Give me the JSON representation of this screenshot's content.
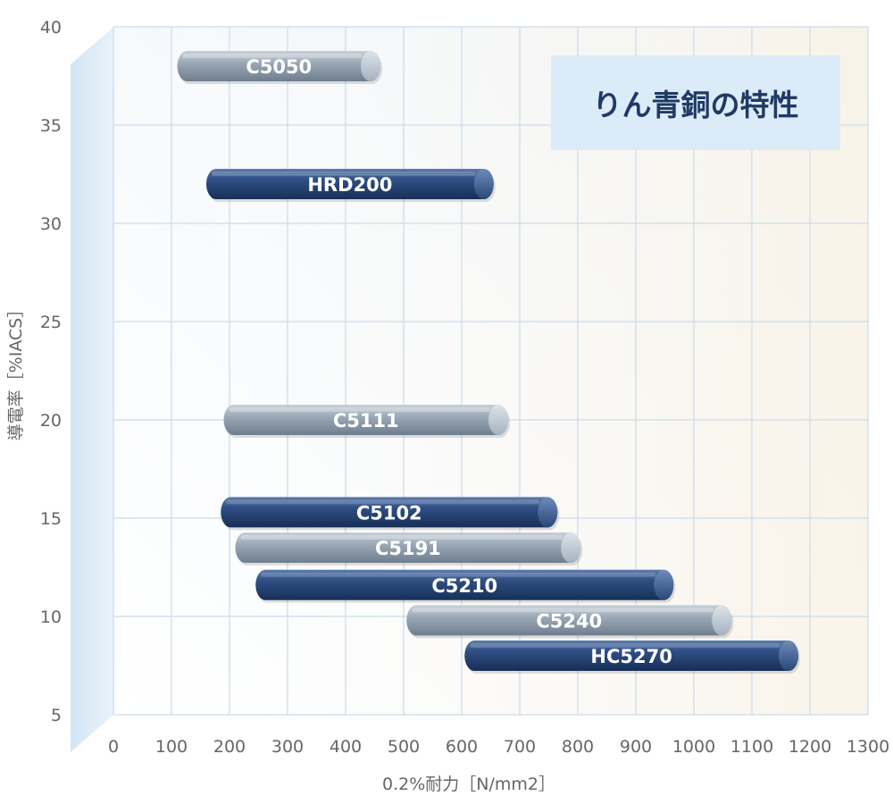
{
  "chart_data": {
    "type": "bar",
    "orientation": "horizontal-range",
    "title": "りん青銅の特性",
    "xlabel": "0.2%耐力［N/mm2］",
    "ylabel": "導電率［%IACS］",
    "xlim": [
      0,
      1300
    ],
    "ylim": [
      5,
      40
    ],
    "xticks": [
      "0",
      "100",
      "200",
      "300",
      "400",
      "500",
      "600",
      "700",
      "800",
      "900",
      "1000",
      "1100",
      "1200",
      "1300"
    ],
    "yticks": [
      "5",
      "10",
      "15",
      "20",
      "25",
      "30",
      "35",
      "40"
    ],
    "grid": true,
    "series": [
      {
        "label": "C5050",
        "x_start": 110,
        "x_end": 460,
        "y": 38,
        "style": "gray"
      },
      {
        "label": "HRD200",
        "x_start": 160,
        "x_end": 655,
        "y": 32,
        "style": "navy"
      },
      {
        "label": "C5111",
        "x_start": 190,
        "x_end": 680,
        "y": 20,
        "style": "gray"
      },
      {
        "label": "C5102",
        "x_start": 185,
        "x_end": 765,
        "y": 15.3,
        "style": "navy"
      },
      {
        "label": "C5191",
        "x_start": 210,
        "x_end": 805,
        "y": 13.5,
        "style": "gray"
      },
      {
        "label": "C5210",
        "x_start": 245,
        "x_end": 965,
        "y": 11.6,
        "style": "navy"
      },
      {
        "label": "C5240",
        "x_start": 505,
        "x_end": 1065,
        "y": 9.8,
        "style": "gray"
      },
      {
        "label": "HC5270",
        "x_start": 605,
        "x_end": 1180,
        "y": 8.0,
        "style": "navy"
      }
    ]
  },
  "colors": {
    "navy": "#2b4a7e",
    "gray": "#9daab6",
    "grid": "#c9dceb",
    "title_box": "#dcebf8",
    "title_text": "#1f3a64",
    "side_wall": "#dbeaf6"
  }
}
